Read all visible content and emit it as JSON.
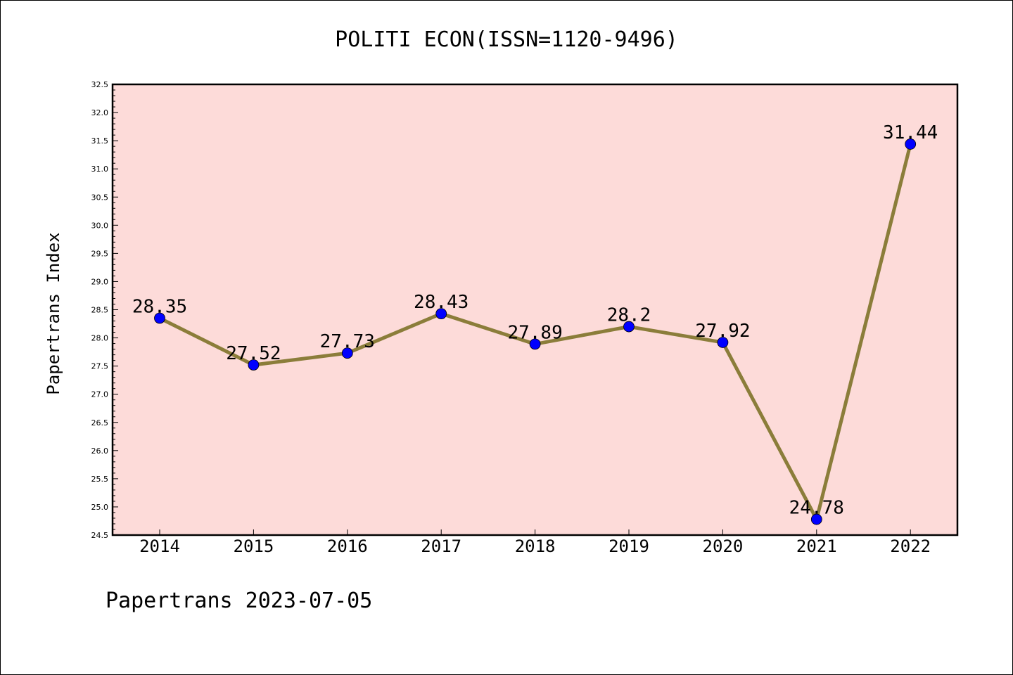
{
  "chart_data": {
    "type": "line",
    "title": "POLITI ECON(ISSN=1120-9496)",
    "xlabel": "",
    "ylabel": "Papertrans Index",
    "categories": [
      "2014",
      "2015",
      "2016",
      "2017",
      "2018",
      "2019",
      "2020",
      "2021",
      "2022"
    ],
    "series": [
      {
        "values": [
          28.35,
          27.52,
          27.73,
          28.43,
          27.89,
          28.2,
          27.92,
          24.78,
          31.44
        ],
        "labels": [
          "28.35",
          "27.52",
          "27.73",
          "28.43",
          "27.89",
          "28.2",
          "27.92",
          "24.78",
          "31.44"
        ],
        "line_color": "#8b7d3a",
        "marker_color": "#0000ff"
      }
    ],
    "ylim": [
      24.5,
      32.5
    ],
    "yticks": [
      "24.5",
      "25.0",
      "25.5",
      "26.0",
      "26.5",
      "27.0",
      "27.5",
      "28.0",
      "28.5",
      "29.0",
      "29.5",
      "30.0",
      "30.5",
      "31.0",
      "31.5",
      "32.0",
      "32.5"
    ],
    "grid": false,
    "plot_background": "#fddbd9"
  },
  "footer": "Papertrans 2023-07-05"
}
